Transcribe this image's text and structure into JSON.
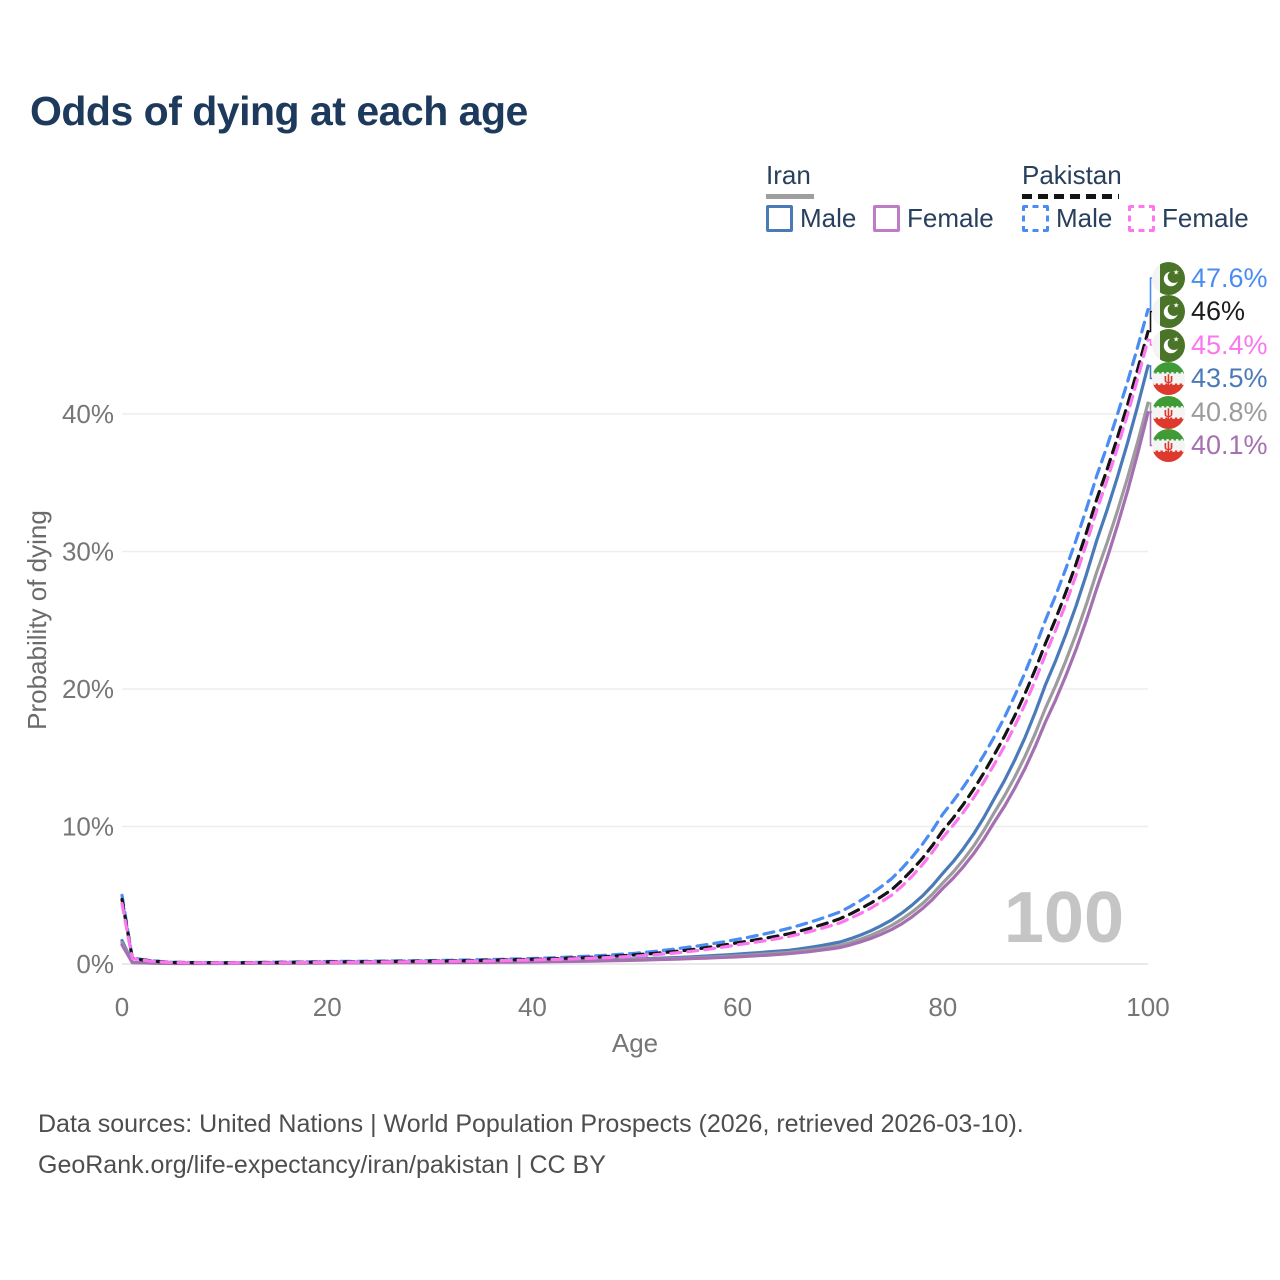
{
  "title": "Odds of dying at each age",
  "legend": {
    "groups": [
      {
        "label": "Iran",
        "line_style": "solid",
        "line_color": "#9e9e9e",
        "items": [
          {
            "label": "Male",
            "color": "#4a7ab8",
            "style": "solid"
          },
          {
            "label": "Female",
            "color": "#bf7cc6",
            "style": "solid"
          }
        ]
      },
      {
        "label": "Pakistan",
        "line_style": "dashed",
        "line_color": "#141414",
        "items": [
          {
            "label": "Male",
            "color": "#4a8cf2",
            "style": "dashed"
          },
          {
            "label": "Female",
            "color": "#fb77ee",
            "style": "dashed"
          }
        ]
      }
    ]
  },
  "age_indicator": "100",
  "footer": {
    "line1": "Data sources: United Nations | World Population Prospects (2026, retrieved 2026-03-10).",
    "line2": "GeoRank.org/life-expectancy/iran/pakistan | CC BY"
  },
  "chart_data": {
    "type": "line",
    "title": "Odds of dying at each age",
    "xlabel": "Age",
    "ylabel": "Probability of dying",
    "x_ticks": [
      0,
      20,
      40,
      60,
      80,
      100
    ],
    "y_tick_values": [
      0,
      10,
      20,
      30,
      40
    ],
    "y_tick_labels": [
      "0%",
      "10%",
      "20%",
      "30%",
      "40%"
    ],
    "xlim": [
      0,
      100
    ],
    "ylim_pct": [
      0,
      48
    ],
    "grid": true,
    "legend_position": "top-right",
    "ages": [
      0,
      1,
      5,
      10,
      15,
      20,
      25,
      30,
      35,
      40,
      45,
      50,
      55,
      60,
      65,
      70,
      75,
      80,
      85,
      90,
      95,
      100
    ],
    "series": [
      {
        "id": "ir_male",
        "name": "Iran Male",
        "country": "Iran",
        "sex": "Male",
        "style": "solid",
        "color": "#4a7ab8",
        "end_label": "43.5%",
        "end_value": 43.5,
        "values_pct": [
          1.7,
          0.12,
          0.05,
          0.05,
          0.07,
          0.1,
          0.12,
          0.14,
          0.17,
          0.21,
          0.27,
          0.36,
          0.5,
          0.72,
          1.0,
          1.6,
          3.2,
          6.6,
          12.0,
          20.3,
          30.8,
          43.5
        ]
      },
      {
        "id": "ir_all",
        "name": "Iran",
        "country": "Iran",
        "sex": "Both",
        "style": "solid",
        "color": "#9c9c9c",
        "end_label": "40.8%",
        "end_value": 40.8,
        "values_pct": [
          1.55,
          0.11,
          0.045,
          0.045,
          0.06,
          0.08,
          0.1,
          0.12,
          0.14,
          0.18,
          0.23,
          0.31,
          0.43,
          0.6,
          0.85,
          1.35,
          2.8,
          5.9,
          11.0,
          18.6,
          28.5,
          40.8
        ]
      },
      {
        "id": "ir_female",
        "name": "Iran Female",
        "country": "Iran",
        "sex": "Female",
        "style": "solid",
        "color": "#a56fb2",
        "end_label": "40.1%",
        "end_value": 40.1,
        "values_pct": [
          1.4,
          0.1,
          0.04,
          0.04,
          0.05,
          0.07,
          0.09,
          0.1,
          0.12,
          0.15,
          0.2,
          0.27,
          0.38,
          0.52,
          0.75,
          1.2,
          2.5,
          5.5,
          10.3,
          17.6,
          27.3,
          40.1
        ]
      },
      {
        "id": "pk_male",
        "name": "Pakistan Male",
        "country": "Pakistan",
        "sex": "Male",
        "style": "dashed",
        "color": "#4a8cf2",
        "end_label": "47.6%",
        "end_value": 47.6,
        "values_pct": [
          5.0,
          0.45,
          0.12,
          0.1,
          0.13,
          0.18,
          0.21,
          0.25,
          0.31,
          0.4,
          0.55,
          0.78,
          1.2,
          1.8,
          2.6,
          3.8,
          6.2,
          10.9,
          16.5,
          25.0,
          35.5,
          47.6
        ]
      },
      {
        "id": "pk_all",
        "name": "Pakistan",
        "country": "Pakistan",
        "sex": "Both",
        "style": "dashed",
        "color": "#141414",
        "end_label": "46%",
        "end_value": 46.0,
        "values_pct": [
          4.7,
          0.42,
          0.11,
          0.09,
          0.11,
          0.15,
          0.18,
          0.21,
          0.26,
          0.34,
          0.46,
          0.66,
          1.0,
          1.55,
          2.2,
          3.3,
          5.4,
          9.7,
          15.2,
          23.3,
          33.8,
          46.0
        ]
      },
      {
        "id": "pk_female",
        "name": "Pakistan Female",
        "country": "Pakistan",
        "sex": "Female",
        "style": "dashed",
        "color": "#fb77ee",
        "end_label": "45.4%",
        "end_value": 45.4,
        "values_pct": [
          4.4,
          0.4,
          0.1,
          0.08,
          0.09,
          0.12,
          0.15,
          0.18,
          0.22,
          0.29,
          0.4,
          0.57,
          0.88,
          1.4,
          2.0,
          3.0,
          5.0,
          9.2,
          14.5,
          22.5,
          33.0,
          45.4
        ]
      }
    ],
    "end_labels": [
      {
        "series": "pk_male",
        "label": "47.6%",
        "color": "#4a8cf2",
        "flag": "pakistan"
      },
      {
        "series": "pk_all",
        "label": "46%",
        "color": "#1c1c1c",
        "flag": "pakistan"
      },
      {
        "series": "pk_female",
        "label": "45.4%",
        "color": "#fb77ee",
        "flag": "pakistan"
      },
      {
        "series": "ir_male",
        "label": "43.5%",
        "color": "#4a7ab8",
        "flag": "iran"
      },
      {
        "series": "ir_all",
        "label": "40.8%",
        "color": "#9c9c9c",
        "flag": "iran"
      },
      {
        "series": "ir_female",
        "label": "40.1%",
        "color": "#a56fb2",
        "flag": "iran"
      }
    ],
    "flag_colors": {
      "pakistan_green": "#4a7529",
      "iran_green": "#3f9b36",
      "iran_red": "#dd392c"
    },
    "axis_color": "#767676",
    "grid_color": "#ededed",
    "watermark_color": "#c5c5c5"
  }
}
